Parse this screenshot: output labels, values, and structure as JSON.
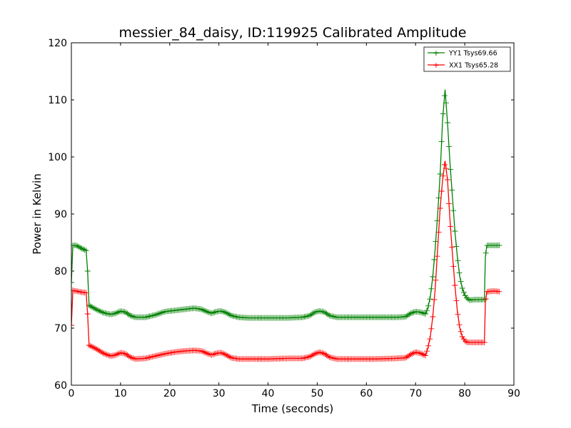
{
  "chart_data": {
    "type": "line",
    "title": "messier_84_daisy, ID:119925 Calibrated Amplitude",
    "xlabel": "Time (seconds)",
    "ylabel": "Power in Kelvin",
    "xlim": [
      0,
      90
    ],
    "ylim": [
      60,
      120
    ],
    "xticks": [
      0,
      10,
      20,
      30,
      40,
      50,
      60,
      70,
      80,
      90
    ],
    "yticks": [
      60,
      70,
      80,
      90,
      100,
      110,
      120
    ],
    "grid": false,
    "legend_position": "top-right",
    "marker": "+",
    "series": [
      {
        "name": "YY1 Tsys69.66",
        "color": "#008000",
        "points": [
          [
            0.0,
            78.0
          ],
          [
            0.3,
            84.5
          ],
          [
            1.0,
            84.5
          ],
          [
            2.0,
            84.0
          ],
          [
            3.0,
            83.6
          ],
          [
            3.3,
            80.0
          ],
          [
            3.6,
            74.0
          ],
          [
            5.0,
            73.3
          ],
          [
            6.5,
            72.7
          ],
          [
            8.0,
            72.4
          ],
          [
            9.0,
            72.6
          ],
          [
            10.0,
            73.0
          ],
          [
            11.0,
            72.8
          ],
          [
            12.0,
            72.2
          ],
          [
            13.0,
            71.9
          ],
          [
            15.0,
            71.9
          ],
          [
            17.0,
            72.3
          ],
          [
            19.0,
            72.9
          ],
          [
            21.0,
            73.1
          ],
          [
            23.0,
            73.3
          ],
          [
            25.0,
            73.5
          ],
          [
            26.5,
            73.3
          ],
          [
            27.5,
            72.9
          ],
          [
            28.5,
            72.6
          ],
          [
            29.5,
            72.9
          ],
          [
            30.5,
            73.0
          ],
          [
            31.5,
            72.7
          ],
          [
            32.5,
            72.2
          ],
          [
            34.0,
            71.9
          ],
          [
            36.0,
            71.8
          ],
          [
            40.0,
            71.8
          ],
          [
            44.0,
            71.8
          ],
          [
            47.0,
            71.9
          ],
          [
            48.5,
            72.2
          ],
          [
            49.5,
            72.8
          ],
          [
            50.5,
            73.0
          ],
          [
            51.5,
            72.8
          ],
          [
            52.5,
            72.2
          ],
          [
            54.0,
            71.9
          ],
          [
            58.0,
            71.9
          ],
          [
            62.0,
            71.9
          ],
          [
            66.0,
            71.9
          ],
          [
            68.0,
            72.0
          ],
          [
            69.0,
            72.6
          ],
          [
            70.0,
            72.9
          ],
          [
            71.0,
            72.8
          ],
          [
            72.0,
            72.5
          ],
          [
            72.5,
            73.5
          ],
          [
            73.0,
            75.5
          ],
          [
            73.5,
            79.0
          ],
          [
            74.0,
            84.0
          ],
          [
            74.5,
            90.0
          ],
          [
            75.0,
            97.0
          ],
          [
            75.5,
            106.5
          ],
          [
            76.0,
            111.8
          ],
          [
            76.5,
            106.0
          ],
          [
            77.0,
            99.0
          ],
          [
            77.5,
            93.0
          ],
          [
            78.0,
            87.0
          ],
          [
            78.5,
            82.5
          ],
          [
            79.0,
            79.0
          ],
          [
            79.5,
            77.0
          ],
          [
            80.0,
            75.8
          ],
          [
            80.5,
            75.2
          ],
          [
            81.0,
            74.9
          ],
          [
            82.0,
            75.0
          ],
          [
            83.0,
            75.0
          ],
          [
            84.0,
            75.0
          ],
          [
            84.2,
            82.5
          ],
          [
            84.5,
            84.5
          ],
          [
            86.0,
            84.5
          ],
          [
            87.0,
            84.5
          ]
        ]
      },
      {
        "name": "XX1 Tsys65.28",
        "color": "#ff0000",
        "points": [
          [
            0.0,
            70.5
          ],
          [
            0.3,
            76.6
          ],
          [
            1.0,
            76.5
          ],
          [
            2.0,
            76.3
          ],
          [
            3.0,
            76.2
          ],
          [
            3.3,
            72.5
          ],
          [
            3.6,
            67.0
          ],
          [
            5.0,
            66.4
          ],
          [
            6.5,
            65.6
          ],
          [
            8.0,
            65.1
          ],
          [
            9.0,
            65.3
          ],
          [
            10.0,
            65.7
          ],
          [
            11.0,
            65.5
          ],
          [
            12.0,
            64.9
          ],
          [
            13.0,
            64.6
          ],
          [
            15.0,
            64.7
          ],
          [
            17.0,
            65.1
          ],
          [
            19.0,
            65.5
          ],
          [
            21.0,
            65.8
          ],
          [
            23.0,
            66.0
          ],
          [
            25.0,
            66.1
          ],
          [
            26.5,
            66.0
          ],
          [
            27.5,
            65.6
          ],
          [
            28.5,
            65.3
          ],
          [
            29.5,
            65.6
          ],
          [
            30.5,
            65.7
          ],
          [
            31.5,
            65.3
          ],
          [
            32.5,
            64.8
          ],
          [
            34.0,
            64.6
          ],
          [
            36.0,
            64.6
          ],
          [
            40.0,
            64.6
          ],
          [
            44.0,
            64.7
          ],
          [
            47.0,
            64.7
          ],
          [
            48.5,
            65.0
          ],
          [
            49.5,
            65.5
          ],
          [
            50.5,
            65.8
          ],
          [
            51.5,
            65.5
          ],
          [
            52.5,
            64.9
          ],
          [
            54.0,
            64.6
          ],
          [
            58.0,
            64.6
          ],
          [
            62.0,
            64.6
          ],
          [
            66.0,
            64.7
          ],
          [
            68.0,
            64.8
          ],
          [
            69.0,
            65.4
          ],
          [
            70.0,
            65.8
          ],
          [
            71.0,
            65.6
          ],
          [
            72.0,
            65.2
          ],
          [
            72.5,
            66.5
          ],
          [
            73.0,
            68.5
          ],
          [
            73.5,
            72.0
          ],
          [
            74.0,
            77.0
          ],
          [
            74.5,
            84.0
          ],
          [
            75.0,
            91.0
          ],
          [
            75.5,
            96.0
          ],
          [
            76.0,
            99.3
          ],
          [
            76.5,
            96.0
          ],
          [
            77.0,
            89.0
          ],
          [
            77.5,
            83.0
          ],
          [
            78.0,
            77.5
          ],
          [
            78.5,
            73.0
          ],
          [
            79.0,
            70.0
          ],
          [
            79.5,
            68.5
          ],
          [
            80.0,
            67.8
          ],
          [
            80.5,
            67.5
          ],
          [
            81.0,
            67.5
          ],
          [
            82.0,
            67.5
          ],
          [
            83.0,
            67.5
          ],
          [
            84.0,
            67.5
          ],
          [
            84.2,
            74.5
          ],
          [
            84.5,
            76.4
          ],
          [
            86.0,
            76.5
          ],
          [
            87.0,
            76.4
          ]
        ]
      }
    ]
  }
}
